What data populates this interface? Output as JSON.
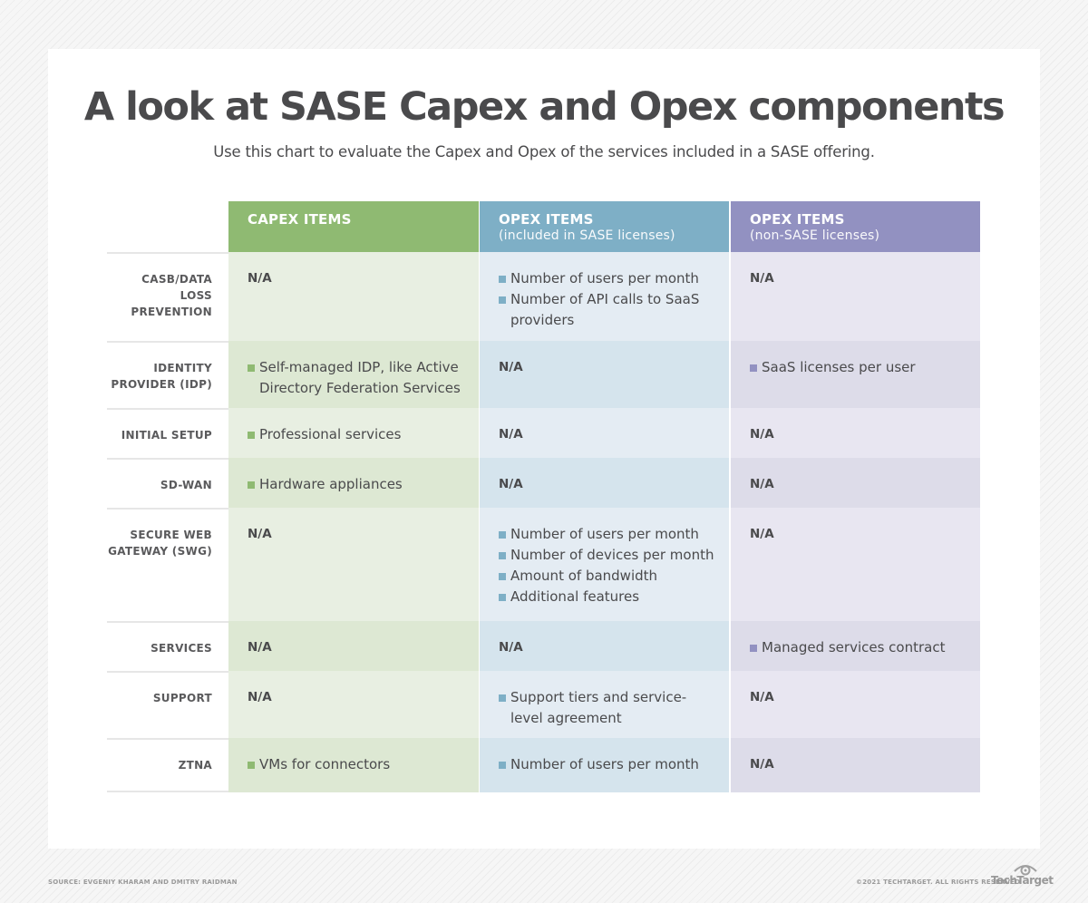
{
  "title": "A look at SASE Capex and Opex components",
  "subtitle": "Use this chart to evaluate the Capex and Opex of the services included in a SASE offering.",
  "colors": {
    "capex_header": "#8fba72",
    "opex_sase_header": "#7eafc6",
    "opex_nonsase_header": "#9291c1",
    "capex_light": "#e8efe2",
    "capex_dark": "#dde8d3",
    "opex_sase_light": "#e4ecf3",
    "opex_sase_dark": "#d5e4ed",
    "opex_nonsase_light": "#e8e6f1",
    "opex_nonsase_dark": "#dddce9",
    "capex_bullet": "#8fba72",
    "opex_sase_bullet": "#7eafc6",
    "opex_nonsase_bullet": "#9291c1"
  },
  "headers": [
    {
      "title": "CAPEX ITEMS",
      "subtitle": ""
    },
    {
      "title": "OPEX ITEMS",
      "subtitle": "(included in SASE licenses)"
    },
    {
      "title": "OPEX ITEMS",
      "subtitle": "(non-SASE licenses)"
    }
  ],
  "rows": [
    {
      "label": "CASB/DATA LOSS PREVENTION",
      "capex": "N/A",
      "opex_sase": [
        "Number of users per month",
        "Number of API calls to SaaS providers"
      ],
      "opex_nonsase": "N/A"
    },
    {
      "label": "IDENTITY PROVIDER (IDP)",
      "capex": [
        "Self-managed IDP, like Active Directory Federation Services"
      ],
      "opex_sase": "N/A",
      "opex_nonsase": [
        "SaaS licenses per user"
      ]
    },
    {
      "label": "INITIAL SETUP",
      "capex": [
        "Professional services"
      ],
      "opex_sase": "N/A",
      "opex_nonsase": "N/A"
    },
    {
      "label": "SD-WAN",
      "capex": [
        "Hardware appliances"
      ],
      "opex_sase": "N/A",
      "opex_nonsase": "N/A"
    },
    {
      "label": "SECURE WEB GATEWAY (SWG)",
      "capex": "N/A",
      "opex_sase": [
        "Number of users per month",
        "Number of devices per month",
        "Amount of bandwidth",
        "Additional features"
      ],
      "opex_nonsase": "N/A"
    },
    {
      "label": "SERVICES",
      "capex": "N/A",
      "opex_sase": "N/A",
      "opex_nonsase": [
        "Managed services contract"
      ]
    },
    {
      "label": "SUPPORT",
      "capex": "N/A",
      "opex_sase": [
        "Support tiers and service-level agreement"
      ],
      "opex_nonsase": "N/A"
    },
    {
      "label": "ZTNA",
      "capex": [
        "VMs for connectors"
      ],
      "opex_sase": [
        "Number of users per month"
      ],
      "opex_nonsase": "N/A"
    }
  ],
  "footer": {
    "source": "SOURCE: EVGENIY KHARAM AND DMITRY RAIDMAN",
    "copyright": "©2021 TECHTARGET. ALL RIGHTS RESERVED",
    "logo": "TechTarget"
  }
}
